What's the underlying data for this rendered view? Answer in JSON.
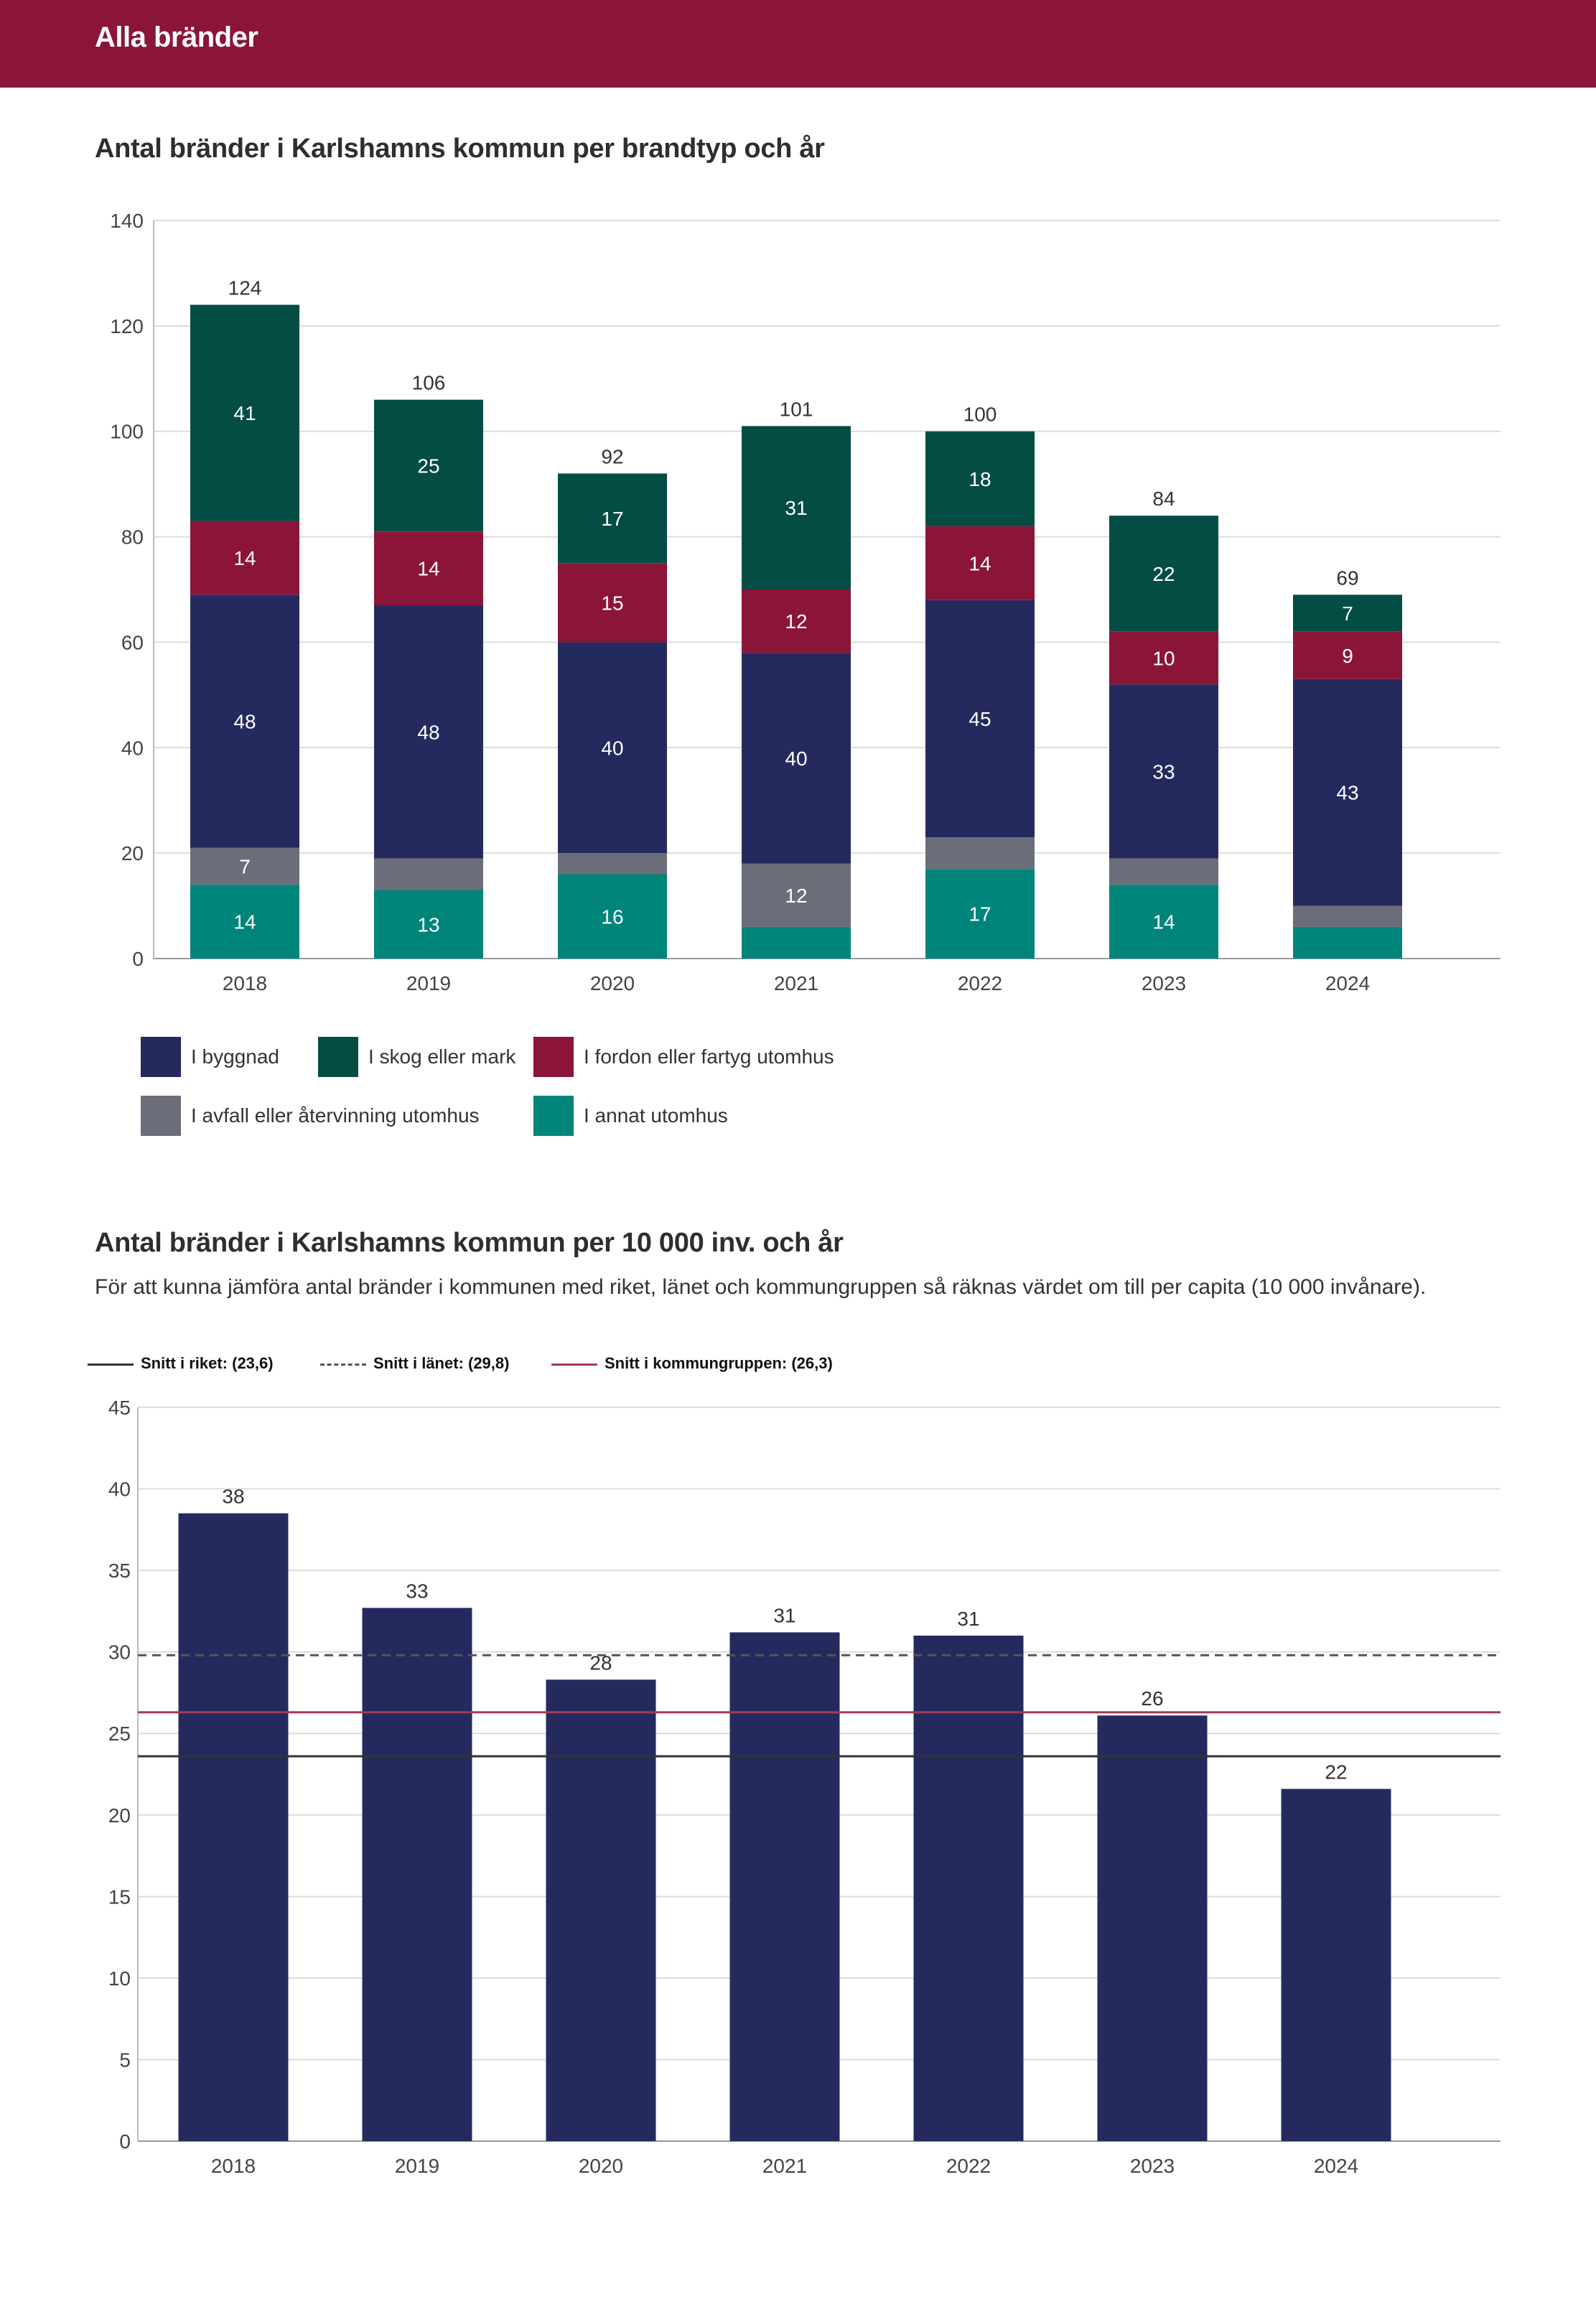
{
  "header": {
    "title": "Alla bränder"
  },
  "chart1": {
    "title": "Antal bränder i Karlshamns kommun per brandtyp och år"
  },
  "chart2": {
    "title": "Antal bränder i Karlshamns kommun per 10 000 inv. och år",
    "subtitle": "För att kunna jämföra antal bränder i kommunen med riket, länet och kommungruppen så räknas värdet om till per capita (10 000 invånare).",
    "ref_legend": [
      {
        "label": "Snitt i riket: (23,6)",
        "style": "solid",
        "color": "#333333"
      },
      {
        "label": "Snitt i länet: (29,8)",
        "style": "dashed",
        "color": "#555555"
      },
      {
        "label": "Snitt i kommungruppen: (26,3)",
        "style": "solid",
        "color": "#a33a57"
      }
    ]
  },
  "chart_data": [
    {
      "type": "bar",
      "stacked": true,
      "title": "Antal bränder i Karlshamns kommun per brandtyp och år",
      "categories": [
        "2018",
        "2019",
        "2020",
        "2021",
        "2022",
        "2023",
        "2024"
      ],
      "ylim": [
        0,
        140
      ],
      "yticks": [
        0,
        20,
        40,
        60,
        80,
        100,
        120,
        140
      ],
      "grid": true,
      "legend_position": "bottom",
      "totals": [
        124,
        106,
        92,
        101,
        100,
        84,
        69
      ],
      "series": [
        {
          "name": "I annat utomhus",
          "color": "#00857b",
          "values": [
            14,
            13,
            16,
            6,
            17,
            14,
            6
          ],
          "labels": [
            "14",
            "13",
            "16",
            "",
            "17",
            "14",
            ""
          ]
        },
        {
          "name": "I avfall eller återvinning utomhus",
          "color": "#6b6e79",
          "values": [
            7,
            6,
            4,
            12,
            6,
            5,
            4
          ],
          "labels": [
            "7",
            "",
            "",
            "12",
            "",
            "",
            ""
          ]
        },
        {
          "name": "I byggnad",
          "color": "#252a5e",
          "values": [
            48,
            48,
            40,
            40,
            45,
            33,
            43
          ],
          "labels": [
            "48",
            "48",
            "40",
            "40",
            "45",
            "33",
            "43"
          ]
        },
        {
          "name": "I fordon eller fartyg utomhus",
          "color": "#8b1538",
          "values": [
            14,
            14,
            15,
            12,
            14,
            10,
            9
          ],
          "labels": [
            "14",
            "14",
            "15",
            "12",
            "14",
            "10",
            "9"
          ]
        },
        {
          "name": "I skog eller mark",
          "color": "#034d45",
          "values": [
            41,
            25,
            17,
            31,
            18,
            22,
            7
          ],
          "labels": [
            "41",
            "25",
            "17",
            "31",
            "18",
            "22",
            "7"
          ]
        }
      ],
      "legend_order": [
        "I byggnad",
        "I skog eller mark",
        "I fordon eller fartyg utomhus",
        "I avfall eller återvinning utomhus",
        "I annat utomhus"
      ]
    },
    {
      "type": "bar",
      "title": "Antal bränder i Karlshamns kommun per 10 000 inv. och år",
      "categories": [
        "2018",
        "2019",
        "2020",
        "2021",
        "2022",
        "2023",
        "2024"
      ],
      "values": [
        38.5,
        32.7,
        28.3,
        31.2,
        31.0,
        26.1,
        21.6
      ],
      "labels": [
        "38",
        "33",
        "28",
        "31",
        "31",
        "26",
        "22"
      ],
      "color": "#252a5e",
      "ylim": [
        0,
        45
      ],
      "yticks": [
        0,
        5,
        10,
        15,
        20,
        25,
        30,
        35,
        40,
        45
      ],
      "grid": true,
      "reference_lines": [
        {
          "name": "Snitt i riket",
          "value": 23.6,
          "style": "solid",
          "color": "#333333"
        },
        {
          "name": "Snitt i länet",
          "value": 29.8,
          "style": "dashed",
          "color": "#555555"
        },
        {
          "name": "Snitt i kommungruppen",
          "value": 26.3,
          "style": "solid",
          "color": "#a33a57"
        }
      ]
    }
  ]
}
